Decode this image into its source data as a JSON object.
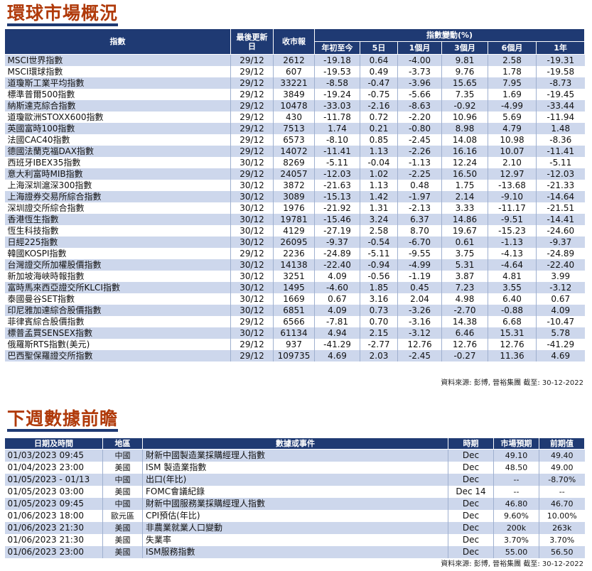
{
  "section1": {
    "title": "環球市場概況",
    "headers": {
      "index": "指數",
      "last_update": "最後更新日",
      "close": "收市報",
      "change_group": "指數變動(%)",
      "ytd": "年初至今",
      "d5": "5日",
      "m1": "1個月",
      "m3": "3個月",
      "m6": "6個月",
      "y1": "1年"
    },
    "rows": [
      {
        "name": "MSCI世界指數",
        "date": "29/12",
        "close": "2612",
        "ytd": "-19.18",
        "d5": "0.64",
        "m1": "-4.00",
        "m3": "9.81",
        "m6": "2.58",
        "y1": "-19.31"
      },
      {
        "name": "MSCI環球指數",
        "date": "29/12",
        "close": "607",
        "ytd": "-19.53",
        "d5": "0.49",
        "m1": "-3.73",
        "m3": "9.76",
        "m6": "1.78",
        "y1": "-19.58"
      },
      {
        "name": "道瓊斯工業平均指數",
        "date": "29/12",
        "close": "33221",
        "ytd": "-8.58",
        "d5": "-0.47",
        "m1": "-3.96",
        "m3": "15.65",
        "m6": "7.95",
        "y1": "-8.73"
      },
      {
        "name": "標準普爾500指數",
        "date": "29/12",
        "close": "3849",
        "ytd": "-19.24",
        "d5": "-0.75",
        "m1": "-5.66",
        "m3": "7.35",
        "m6": "1.69",
        "y1": "-19.45"
      },
      {
        "name": "納斯達克綜合指數",
        "date": "29/12",
        "close": "10478",
        "ytd": "-33.03",
        "d5": "-2.16",
        "m1": "-8.63",
        "m3": "-0.92",
        "m6": "-4.99",
        "y1": "-33.44"
      },
      {
        "name": "道瓊歐洲STOXX600指數",
        "date": "29/12",
        "close": "430",
        "ytd": "-11.78",
        "d5": "0.72",
        "m1": "-2.20",
        "m3": "10.96",
        "m6": "5.69",
        "y1": "-11.94"
      },
      {
        "name": "英國富時100指數",
        "date": "29/12",
        "close": "7513",
        "ytd": "1.74",
        "d5": "0.21",
        "m1": "-0.80",
        "m3": "8.98",
        "m6": "4.79",
        "y1": "1.48"
      },
      {
        "name": "法國CAC40指數",
        "date": "29/12",
        "close": "6573",
        "ytd": "-8.10",
        "d5": "0.85",
        "m1": "-2.45",
        "m3": "14.08",
        "m6": "10.98",
        "y1": "-8.36"
      },
      {
        "name": "德國法蘭克福DAX指數",
        "date": "29/12",
        "close": "14072",
        "ytd": "-11.41",
        "d5": "1.13",
        "m1": "-2.26",
        "m3": "16.16",
        "m6": "10.07",
        "y1": "-11.41"
      },
      {
        "name": "西班牙IBEX35指數",
        "date": "30/12",
        "close": "8269",
        "ytd": "-5.11",
        "d5": "-0.04",
        "m1": "-1.13",
        "m3": "12.24",
        "m6": "2.10",
        "y1": "-5.11"
      },
      {
        "name": "意大利富時MIB指數",
        "date": "29/12",
        "close": "24057",
        "ytd": "-12.03",
        "d5": "1.02",
        "m1": "-2.25",
        "m3": "16.50",
        "m6": "12.97",
        "y1": "-12.03"
      },
      {
        "name": "上海深圳滬深300指數",
        "date": "30/12",
        "close": "3872",
        "ytd": "-21.63",
        "d5": "1.13",
        "m1": "0.48",
        "m3": "1.75",
        "m6": "-13.68",
        "y1": "-21.33"
      },
      {
        "name": "上海證券交易所綜合指數",
        "date": "30/12",
        "close": "3089",
        "ytd": "-15.13",
        "d5": "1.42",
        "m1": "-1.97",
        "m3": "2.14",
        "m6": "-9.10",
        "y1": "-14.64"
      },
      {
        "name": "深圳證交所綜合指數",
        "date": "30/12",
        "close": "1976",
        "ytd": "-21.92",
        "d5": "1.31",
        "m1": "-2.13",
        "m3": "3.33",
        "m6": "-11.17",
        "y1": "-21.51"
      },
      {
        "name": "香港恆生指數",
        "date": "30/12",
        "close": "19781",
        "ytd": "-15.46",
        "d5": "3.24",
        "m1": "6.37",
        "m3": "14.86",
        "m6": "-9.51",
        "y1": "-14.41"
      },
      {
        "name": "恆生科技指數",
        "date": "30/12",
        "close": "4129",
        "ytd": "-27.19",
        "d5": "2.58",
        "m1": "8.70",
        "m3": "19.67",
        "m6": "-15.23",
        "y1": "-24.60"
      },
      {
        "name": "日經225指數",
        "date": "30/12",
        "close": "26095",
        "ytd": "-9.37",
        "d5": "-0.54",
        "m1": "-6.70",
        "m3": "0.61",
        "m6": "-1.13",
        "y1": "-9.37"
      },
      {
        "name": "韓國KOSPI指數",
        "date": "29/12",
        "close": "2236",
        "ytd": "-24.89",
        "d5": "-5.11",
        "m1": "-9.55",
        "m3": "3.75",
        "m6": "-4.13",
        "y1": "-24.89"
      },
      {
        "name": "台灣證交所加權股價指數",
        "date": "30/12",
        "close": "14138",
        "ytd": "-22.40",
        "d5": "-0.94",
        "m1": "-4.99",
        "m3": "5.31",
        "m6": "-4.64",
        "y1": "-22.40"
      },
      {
        "name": "新加坡海峽時報指數",
        "date": "30/12",
        "close": "3251",
        "ytd": "4.09",
        "d5": "-0.56",
        "m1": "-1.19",
        "m3": "3.87",
        "m6": "4.81",
        "y1": "3.99"
      },
      {
        "name": "富時馬來西亞證交所KLCI指數",
        "date": "30/12",
        "close": "1495",
        "ytd": "-4.60",
        "d5": "1.85",
        "m1": "0.45",
        "m3": "7.23",
        "m6": "3.55",
        "y1": "-3.12"
      },
      {
        "name": "泰國曼谷SET指數",
        "date": "30/12",
        "close": "1669",
        "ytd": "0.67",
        "d5": "3.16",
        "m1": "2.04",
        "m3": "4.98",
        "m6": "6.40",
        "y1": "0.67"
      },
      {
        "name": "印尼雅加達綜合股價指數",
        "date": "30/12",
        "close": "6851",
        "ytd": "4.09",
        "d5": "0.73",
        "m1": "-3.26",
        "m3": "-2.70",
        "m6": "-0.88",
        "y1": "4.09"
      },
      {
        "name": "菲律賓綜合股價指數",
        "date": "29/12",
        "close": "6566",
        "ytd": "-7.81",
        "d5": "0.70",
        "m1": "-3.16",
        "m3": "14.38",
        "m6": "6.68",
        "y1": "-10.47"
      },
      {
        "name": "標普孟買SENSEX指數",
        "date": "30/12",
        "close": "61134",
        "ytd": "4.94",
        "d5": "2.15",
        "m1": "-3.12",
        "m3": "6.46",
        "m6": "15.31",
        "y1": "5.78"
      },
      {
        "name": "俄羅斯RTS指數(美元)",
        "date": "29/12",
        "close": "937",
        "ytd": "-41.29",
        "d5": "-2.77",
        "m1": "12.76",
        "m3": "12.76",
        "m6": "12.76",
        "y1": "-41.29"
      },
      {
        "name": "巴西聖保羅證交所指數",
        "date": "29/12",
        "close": "109735",
        "ytd": "4.69",
        "d5": "2.03",
        "m1": "-2.45",
        "m3": "-0.27",
        "m6": "11.36",
        "y1": "4.69"
      }
    ],
    "source": "資料來源: 彭博, 晉裕集團 截至: 30-12-2022"
  },
  "section2": {
    "title": "下週數據前瞻",
    "headers": {
      "datetime": "日期及時間",
      "region": "地區",
      "event": "數據或事件",
      "period": "時期",
      "forecast": "市場預期",
      "previous": "前期值"
    },
    "rows": [
      {
        "datetime": "01/03/2023 09:45",
        "region": "中國",
        "event": "財新中國製造業採購經理人指數",
        "period": "Dec",
        "forecast": "49.10",
        "previous": "49.40"
      },
      {
        "datetime": "01/04/2023 23:00",
        "region": "美國",
        "event": "ISM 製造業指數",
        "period": "Dec",
        "forecast": "48.50",
        "previous": "49.00"
      },
      {
        "datetime": "01/05/2023 - 01/13",
        "region": "中國",
        "event": "出口(年比)",
        "period": "Dec",
        "forecast": "--",
        "previous": "-8.70%"
      },
      {
        "datetime": "01/05/2023 03:00",
        "region": "美國",
        "event": "FOMC會議紀錄",
        "period": "Dec 14",
        "forecast": "--",
        "previous": "--"
      },
      {
        "datetime": "01/05/2023 09:45",
        "region": "中國",
        "event": "財新中國服務業採購經理人指數",
        "period": "Dec",
        "forecast": "46.80",
        "previous": "46.70"
      },
      {
        "datetime": "01/06/2023 18:00",
        "region": "歐元區",
        "event": "CPI預估(年比)",
        "period": "Dec",
        "forecast": "9.60%",
        "previous": "10.00%"
      },
      {
        "datetime": "01/06/2023 21:30",
        "region": "美國",
        "event": "非農業就業人口變動",
        "period": "Dec",
        "forecast": "200k",
        "previous": "263k"
      },
      {
        "datetime": "01/06/2023 21:30",
        "region": "美國",
        "event": "失業率",
        "period": "Dec",
        "forecast": "3.70%",
        "previous": "3.70%"
      },
      {
        "datetime": "01/06/2023 23:00",
        "region": "美國",
        "event": "ISM服務指數",
        "period": "Dec",
        "forecast": "55.00",
        "previous": "56.50"
      }
    ],
    "source": "資料來源: 彭博, 晉裕集團 截至: 30-12-2022"
  }
}
